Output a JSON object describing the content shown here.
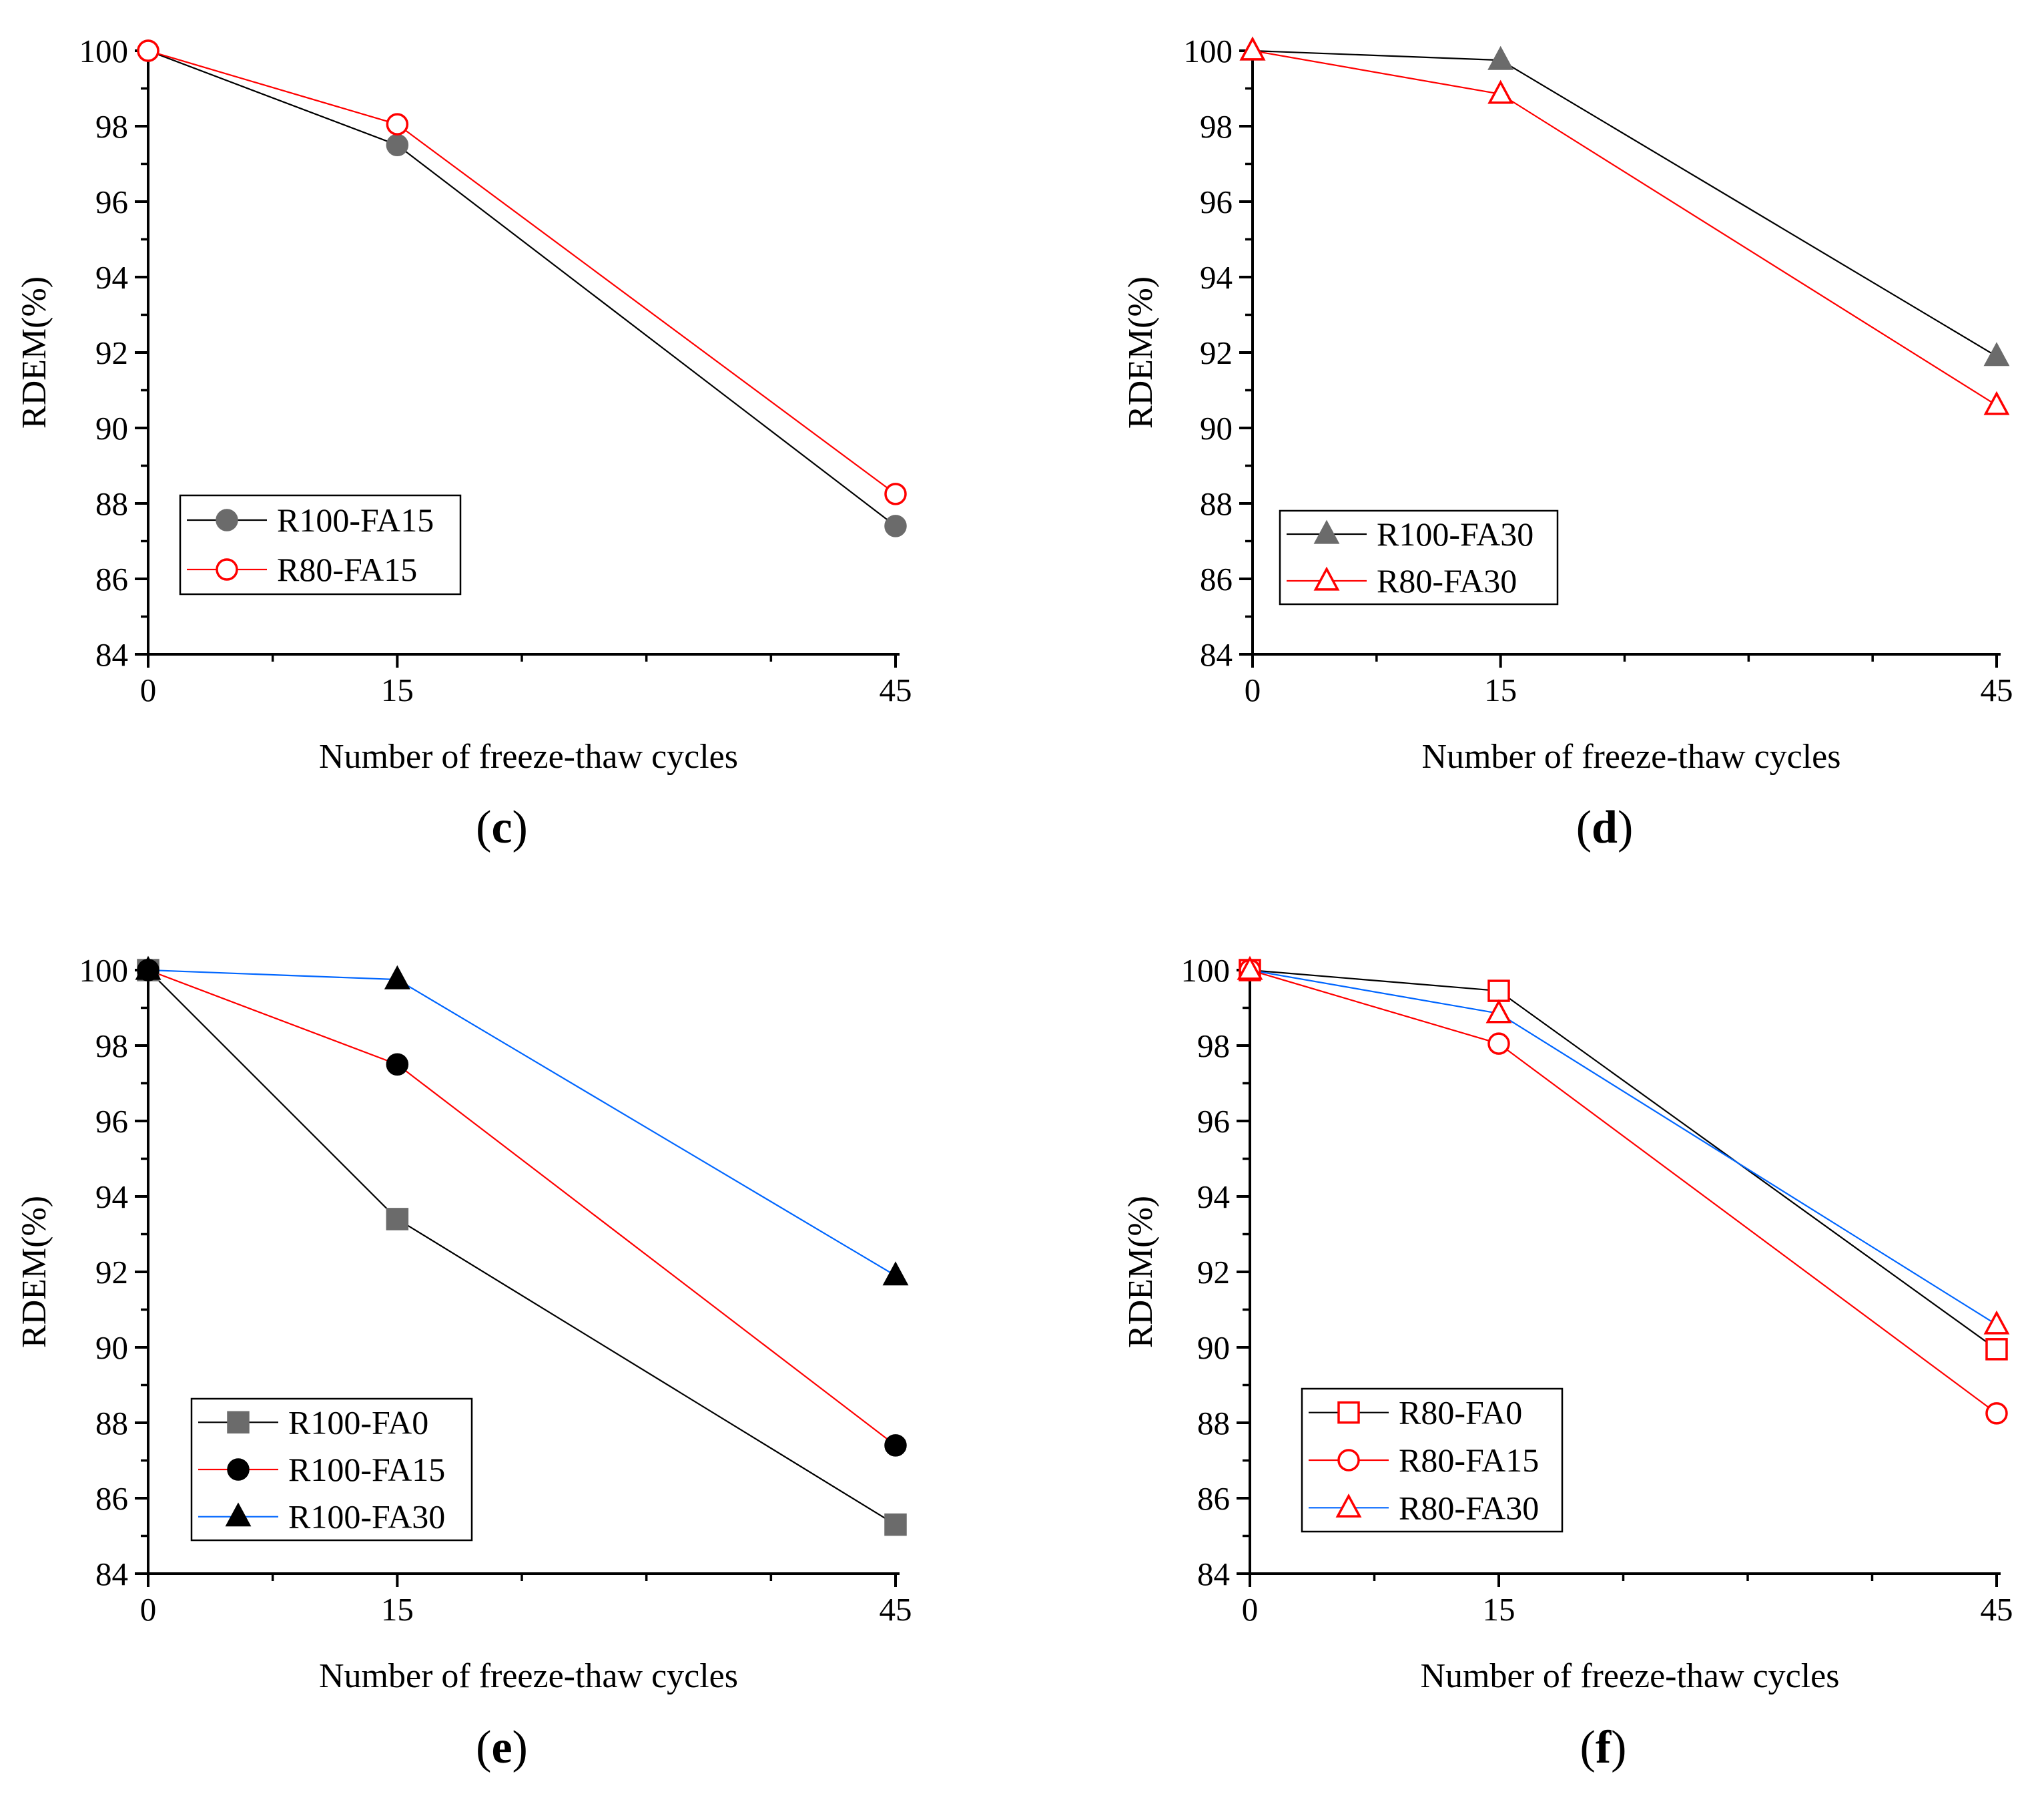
{
  "chart_data": [
    {
      "id": "c",
      "type": "line",
      "caption_letter": "c",
      "xlabel": "Number of freeze-thaw cycles",
      "ylabel": "RDEM(%)",
      "x_ticks": [
        "0",
        "15",
        "45"
      ],
      "ylim": [
        84,
        100
      ],
      "y_ticks": [
        "84",
        "86",
        "88",
        "90",
        "92",
        "94",
        "96",
        "98",
        "100"
      ],
      "legend_position": "lower-left",
      "series": [
        {
          "name": "R100-FA15",
          "color": "#000000",
          "marker": "circle",
          "fill": "#6b6b6b",
          "stroke": "#6b6b6b",
          "values": [
            100,
            97.5,
            87.4
          ]
        },
        {
          "name": "R80-FA15",
          "color": "#ff0000",
          "marker": "circle",
          "fill": "#ffffff",
          "stroke": "#ff0000",
          "values": [
            100,
            98.05,
            88.25
          ]
        }
      ]
    },
    {
      "id": "d",
      "type": "line",
      "caption_letter": "d",
      "xlabel": "Number of freeze-thaw cycles",
      "ylabel": "RDEM(%)",
      "x_ticks": [
        "0",
        "15",
        "45"
      ],
      "ylim": [
        84,
        100
      ],
      "y_ticks": [
        "84",
        "86",
        "88",
        "90",
        "92",
        "94",
        "96",
        "98",
        "100"
      ],
      "legend_position": "lower-left",
      "series": [
        {
          "name": "R100-FA30",
          "color": "#000000",
          "marker": "triangle",
          "fill": "#6b6b6b",
          "stroke": "#6b6b6b",
          "values": [
            100,
            99.75,
            91.9
          ]
        },
        {
          "name": "R80-FA30",
          "color": "#ff0000",
          "marker": "triangle",
          "fill": "#ffffff",
          "stroke": "#ff0000",
          "values": [
            100,
            98.85,
            90.6
          ]
        }
      ]
    },
    {
      "id": "e",
      "type": "line",
      "caption_letter": "e",
      "xlabel": "Number of freeze-thaw cycles",
      "ylabel": "RDEM(%)",
      "x_ticks": [
        "0",
        "15",
        "45"
      ],
      "ylim": [
        84,
        100
      ],
      "y_ticks": [
        "84",
        "86",
        "88",
        "90",
        "92",
        "94",
        "96",
        "98",
        "100"
      ],
      "legend_position": "lower-left",
      "series": [
        {
          "name": "R100-FA0",
          "color": "#000000",
          "marker": "square",
          "fill": "#6b6b6b",
          "stroke": "#6b6b6b",
          "values": [
            100,
            93.4,
            85.3
          ]
        },
        {
          "name": "R100-FA15",
          "color": "#ff0000",
          "marker": "circle",
          "fill": "#000000",
          "stroke": "#000000",
          "values": [
            100,
            97.5,
            87.4
          ]
        },
        {
          "name": "R100-FA30",
          "color": "#0066ff",
          "marker": "triangle",
          "fill": "#000000",
          "stroke": "#000000",
          "values": [
            100,
            99.75,
            91.9
          ]
        }
      ]
    },
    {
      "id": "f",
      "type": "line",
      "caption_letter": "f",
      "xlabel": "Number of freeze-thaw cycles",
      "ylabel": "RDEM(%)",
      "x_ticks": [
        "0",
        "15",
        "45"
      ],
      "ylim": [
        84,
        100
      ],
      "y_ticks": [
        "84",
        "86",
        "88",
        "90",
        "92",
        "94",
        "96",
        "98",
        "100"
      ],
      "legend_position": "lower-left",
      "series": [
        {
          "name": "R80-FA0",
          "color": "#000000",
          "marker": "square",
          "fill": "#ffffff",
          "stroke": "#ff0000",
          "values": [
            100,
            99.45,
            89.95
          ]
        },
        {
          "name": "R80-FA15",
          "color": "#ff0000",
          "marker": "circle",
          "fill": "#ffffff",
          "stroke": "#ff0000",
          "values": [
            100,
            98.05,
            88.25
          ]
        },
        {
          "name": "R80-FA30",
          "color": "#0066ff",
          "marker": "triangle",
          "fill": "#ffffff",
          "stroke": "#ff0000",
          "values": [
            100,
            98.85,
            90.6
          ]
        }
      ]
    }
  ]
}
